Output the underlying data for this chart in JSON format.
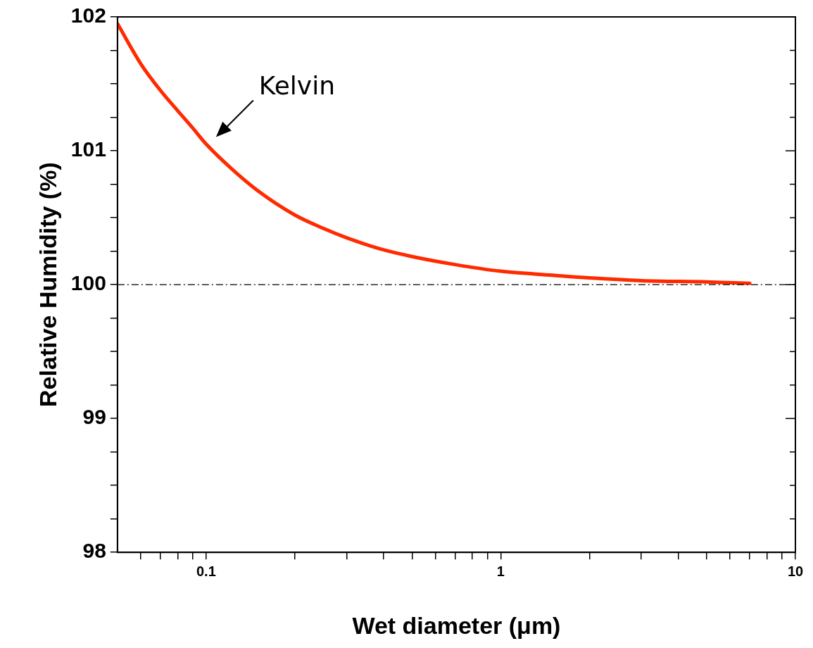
{
  "chart_data": {
    "type": "line",
    "xlabel": "Wet diameter (μm)",
    "ylabel": "Relative Humidity (%)",
    "x": [
      0.05,
      0.06,
      0.07,
      0.08,
      0.09,
      0.1,
      0.12,
      0.15,
      0.2,
      0.25,
      0.3,
      0.4,
      0.5,
      0.7,
      1,
      1.5,
      2,
      3,
      5,
      7
    ],
    "series": [
      {
        "color": "#ff2a00",
        "values": [
          101.95,
          101.65,
          101.45,
          101.3,
          101.17,
          101.05,
          100.88,
          100.7,
          100.52,
          100.42,
          100.35,
          100.26,
          100.21,
          100.15,
          100.1,
          100.07,
          100.05,
          100.03,
          100.02,
          100.01
        ]
      }
    ],
    "log": "x",
    "xlim": [
      0.05,
      10
    ],
    "ylim": [
      98,
      102
    ],
    "xticks": [
      {
        "value": 0.06,
        "label": null
      },
      {
        "value": 0.07,
        "label": null
      },
      {
        "value": 0.08,
        "label": null
      },
      {
        "value": 0.09,
        "label": null
      },
      0.1,
      {
        "value": 0.2,
        "label": null
      },
      {
        "value": 0.3,
        "label": null
      },
      {
        "value": 0.4,
        "label": null
      },
      {
        "value": 0.5,
        "label": null
      },
      {
        "value": 0.6,
        "label": null
      },
      {
        "value": 0.7,
        "label": null
      },
      {
        "value": 0.8,
        "label": null
      },
      {
        "value": 0.9,
        "label": null
      },
      1,
      {
        "value": 2,
        "label": null
      },
      {
        "value": 3,
        "label": null
      },
      {
        "value": 4,
        "label": null
      },
      {
        "value": 5,
        "label": null
      },
      {
        "value": 6,
        "label": null
      },
      {
        "value": 7,
        "label": null
      },
      {
        "value": 8,
        "label": null
      },
      {
        "value": 9,
        "label": null
      },
      10
    ],
    "yticks": [
      98,
      {
        "value": 98.25,
        "label": null
      },
      {
        "value": 98.5,
        "label": null
      },
      {
        "value": 98.75,
        "label": null
      },
      99,
      {
        "value": 99.25,
        "label": null
      },
      {
        "value": 99.5,
        "label": null
      },
      {
        "value": 99.75,
        "label": null
      },
      100,
      {
        "value": 100.25,
        "label": null
      },
      {
        "value": 100.5,
        "label": null
      },
      {
        "value": 100.75,
        "label": null
      },
      101,
      {
        "value": 101.25,
        "label": null
      },
      {
        "value": 101.5,
        "label": null
      },
      {
        "value": 101.75,
        "label": null
      },
      102
    ],
    "ref_lines": [
      {
        "axis": "y",
        "value": 100,
        "color": "#000000",
        "line_style": "dashdot"
      }
    ],
    "annotations": [
      {
        "text": "Kelvin",
        "x": 0.1,
        "y": 101.05
      }
    ],
    "grid": false,
    "legend": false,
    "marker": "none",
    "line_style": "solid"
  }
}
